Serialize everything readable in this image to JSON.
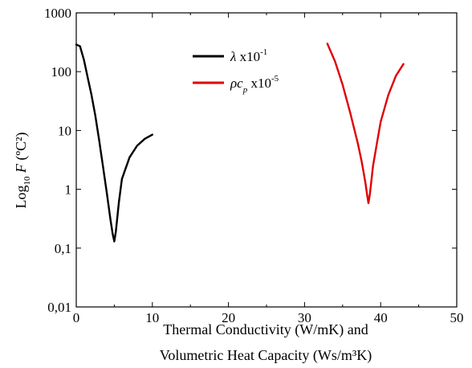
{
  "chart_data": {
    "type": "line",
    "title": "",
    "xlabel_line1": "Thermal Conductivity (W/mK) and",
    "xlabel_line2": "Volumetric Heat Capacity (Ws/m³K)",
    "ylabel": {
      "base": "Log",
      "subscript": "10",
      "variable": "F",
      "unit": "(ºC²)"
    },
    "x_ticks": [
      0,
      10,
      20,
      30,
      40,
      50
    ],
    "x_tick_labels": [
      "0",
      "10",
      "20",
      "30",
      "40",
      "50"
    ],
    "y_ticks": [
      0.01,
      0.1,
      1,
      10,
      100,
      1000
    ],
    "y_tick_labels": [
      "0,01",
      "0,1",
      "1",
      "10",
      "100",
      "1000"
    ],
    "xlim": [
      0,
      50
    ],
    "ylim": [
      0.01,
      1000
    ],
    "y_scale": "log",
    "grid": false,
    "legend_placement": "top-center",
    "series": [
      {
        "name_symbol": "λ",
        "name_text": " x10",
        "name_exponent": "-1",
        "color": "#000000",
        "x": [
          0,
          0.5,
          1,
          1.5,
          2,
          2.5,
          3,
          3.5,
          4,
          4.5,
          4.8,
          5.0,
          5.2,
          5.6,
          6,
          7,
          8,
          9,
          10
        ],
        "y": [
          290,
          270,
          160,
          80,
          40,
          18,
          7,
          2.5,
          0.9,
          0.3,
          0.17,
          0.13,
          0.19,
          0.6,
          1.5,
          3.5,
          5.5,
          7.2,
          8.5
        ]
      },
      {
        "name_symbol": "ρc",
        "name_subscript": "p",
        "name_text": " x10",
        "name_exponent": "-5",
        "color": "#e00000",
        "x": [
          33,
          34,
          35,
          36,
          37,
          37.5,
          38,
          38.2,
          38.4,
          38.6,
          39,
          39.5,
          40,
          41,
          42,
          43
        ],
        "y": [
          300,
          150,
          60,
          20,
          6,
          3,
          1.3,
          0.85,
          0.58,
          0.85,
          2.5,
          6,
          14,
          40,
          85,
          135
        ]
      }
    ]
  }
}
